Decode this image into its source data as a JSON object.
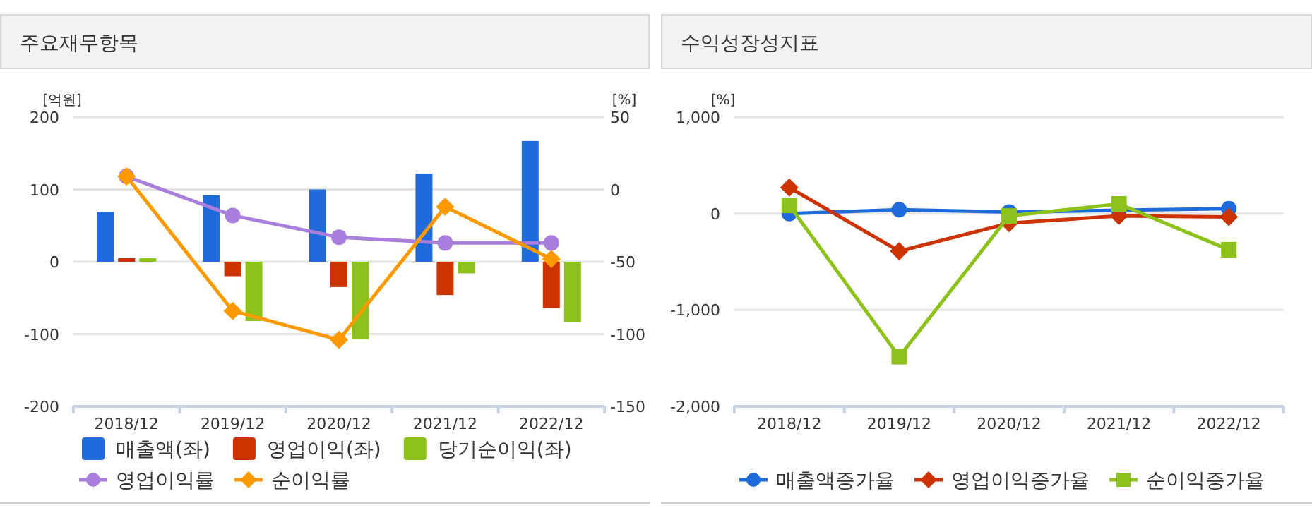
{
  "chart_data": [
    {
      "type": "bar",
      "title": "주요재무항목",
      "ylabel": "[억원]",
      "y2label": "[%]",
      "categories": [
        "2018/12",
        "2019/12",
        "2020/12",
        "2021/12",
        "2022/12"
      ],
      "series": [
        {
          "name": "매출액(좌)",
          "color": "#1f6bdc",
          "values": [
            69,
            92,
            100,
            122,
            167
          ]
        },
        {
          "name": "영업이익(좌)",
          "color": "#cc3300",
          "values": [
            5,
            -20,
            -35,
            -46,
            -64
          ]
        },
        {
          "name": "당기순이익(좌)",
          "color": "#8cc21a",
          "values": [
            5,
            -82,
            -107,
            -16,
            -83
          ]
        },
        {
          "name": "영업이익률",
          "type": "line",
          "axis": "y2",
          "marker": "circle",
          "color": "#a87fdc",
          "values": [
            9,
            -18,
            -33,
            -37,
            -37
          ]
        },
        {
          "name": "순이익률",
          "type": "line",
          "axis": "y2",
          "marker": "diamond",
          "color": "#ff9900",
          "values": [
            9,
            -84,
            -104,
            -12,
            -48
          ]
        }
      ],
      "ylim": [
        -200,
        200
      ],
      "yticks": [
        -200,
        -100,
        0,
        100,
        200
      ],
      "y2lim": [
        -150,
        50
      ],
      "y2ticks": [
        -150,
        -100,
        -50,
        0,
        50
      ],
      "grid": "y",
      "legend": "bottom"
    },
    {
      "type": "line",
      "title": "수익성장성지표",
      "ylabel": "[%]",
      "categories": [
        "2018/12",
        "2019/12",
        "2020/12",
        "2021/12",
        "2022/12"
      ],
      "series": [
        {
          "name": "매출액증가율",
          "marker": "circle",
          "color": "#1f6bdc",
          "values": [
            0,
            40,
            15,
            35,
            50
          ]
        },
        {
          "name": "영업이익증가율",
          "marker": "diamond",
          "color": "#cc3300",
          "values": [
            270,
            -390,
            -100,
            -25,
            -35
          ]
        },
        {
          "name": "순이익증가율",
          "marker": "square",
          "color": "#8cc21a",
          "values": [
            85,
            -1485,
            -25,
            100,
            -375
          ]
        }
      ],
      "ylim": [
        -2000,
        1000
      ],
      "yticks": [
        {
          "value": -2000,
          "label": "-2,000"
        },
        {
          "value": -1000,
          "label": "-1,000"
        },
        0,
        {
          "value": 1000,
          "label": "1,000"
        }
      ],
      "grid": "y",
      "legend": "bottom"
    }
  ]
}
